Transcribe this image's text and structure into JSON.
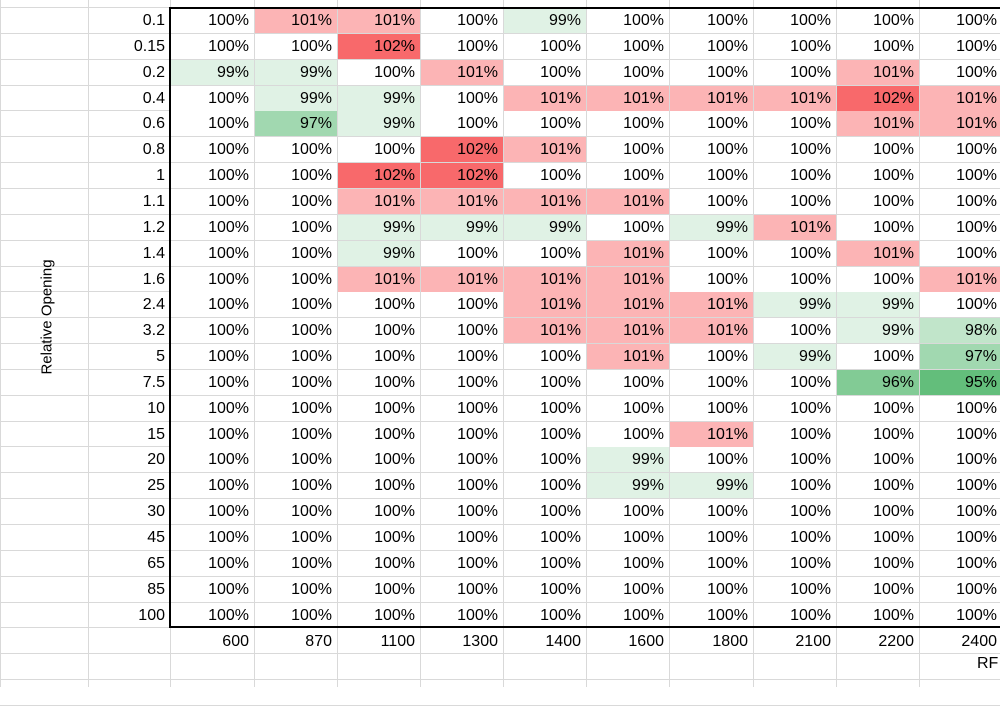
{
  "y_axis_label": "Relative Opening",
  "x_axis_label": "RF",
  "columns": [
    "600",
    "870",
    "1100",
    "1300",
    "1400",
    "1600",
    "1800",
    "2100",
    "2200",
    "2400"
  ],
  "rows": [
    {
      "label": "0.1",
      "values": [
        100,
        101,
        101,
        100,
        99,
        100,
        100,
        100,
        100,
        100
      ]
    },
    {
      "label": "0.15",
      "values": [
        100,
        100,
        102,
        100,
        100,
        100,
        100,
        100,
        100,
        100
      ]
    },
    {
      "label": "0.2",
      "values": [
        99,
        99,
        100,
        101,
        100,
        100,
        100,
        100,
        101,
        100
      ]
    },
    {
      "label": "0.4",
      "values": [
        100,
        99,
        99,
        100,
        101,
        101,
        101,
        101,
        102,
        101
      ]
    },
    {
      "label": "0.6",
      "values": [
        100,
        97,
        99,
        100,
        100,
        100,
        100,
        100,
        101,
        101
      ]
    },
    {
      "label": "0.8",
      "values": [
        100,
        100,
        100,
        102,
        101,
        100,
        100,
        100,
        100,
        100
      ]
    },
    {
      "label": "1",
      "values": [
        100,
        100,
        102,
        102,
        100,
        100,
        100,
        100,
        100,
        100
      ]
    },
    {
      "label": "1.1",
      "values": [
        100,
        100,
        101,
        101,
        101,
        101,
        100,
        100,
        100,
        100
      ]
    },
    {
      "label": "1.2",
      "values": [
        100,
        100,
        99,
        99,
        99,
        100,
        99,
        101,
        100,
        100
      ]
    },
    {
      "label": "1.4",
      "values": [
        100,
        100,
        99,
        100,
        100,
        101,
        100,
        100,
        101,
        100
      ]
    },
    {
      "label": "1.6",
      "values": [
        100,
        100,
        101,
        101,
        101,
        101,
        100,
        100,
        100,
        101
      ]
    },
    {
      "label": "2.4",
      "values": [
        100,
        100,
        100,
        100,
        101,
        101,
        101,
        99,
        99,
        100
      ]
    },
    {
      "label": "3.2",
      "values": [
        100,
        100,
        100,
        100,
        101,
        101,
        101,
        100,
        99,
        98
      ]
    },
    {
      "label": "5",
      "values": [
        100,
        100,
        100,
        100,
        100,
        101,
        100,
        99,
        100,
        97
      ]
    },
    {
      "label": "7.5",
      "values": [
        100,
        100,
        100,
        100,
        100,
        100,
        100,
        100,
        96,
        95
      ]
    },
    {
      "label": "10",
      "values": [
        100,
        100,
        100,
        100,
        100,
        100,
        100,
        100,
        100,
        100
      ]
    },
    {
      "label": "15",
      "values": [
        100,
        100,
        100,
        100,
        100,
        100,
        101,
        100,
        100,
        100
      ]
    },
    {
      "label": "20",
      "values": [
        100,
        100,
        100,
        100,
        100,
        99,
        100,
        100,
        100,
        100
      ]
    },
    {
      "label": "25",
      "values": [
        100,
        100,
        100,
        100,
        100,
        99,
        99,
        100,
        100,
        100
      ]
    },
    {
      "label": "30",
      "values": [
        100,
        100,
        100,
        100,
        100,
        100,
        100,
        100,
        100,
        100
      ]
    },
    {
      "label": "45",
      "values": [
        100,
        100,
        100,
        100,
        100,
        100,
        100,
        100,
        100,
        100
      ]
    },
    {
      "label": "65",
      "values": [
        100,
        100,
        100,
        100,
        100,
        100,
        100,
        100,
        100,
        100
      ]
    },
    {
      "label": "85",
      "values": [
        100,
        100,
        100,
        100,
        100,
        100,
        100,
        100,
        100,
        100
      ]
    },
    {
      "label": "100",
      "values": [
        100,
        100,
        100,
        100,
        100,
        100,
        100,
        100,
        100,
        100
      ]
    }
  ],
  "color_scale": {
    "low": "#63be7b",
    "mid": "#ffffff",
    "high": "#f8696b"
  }
}
